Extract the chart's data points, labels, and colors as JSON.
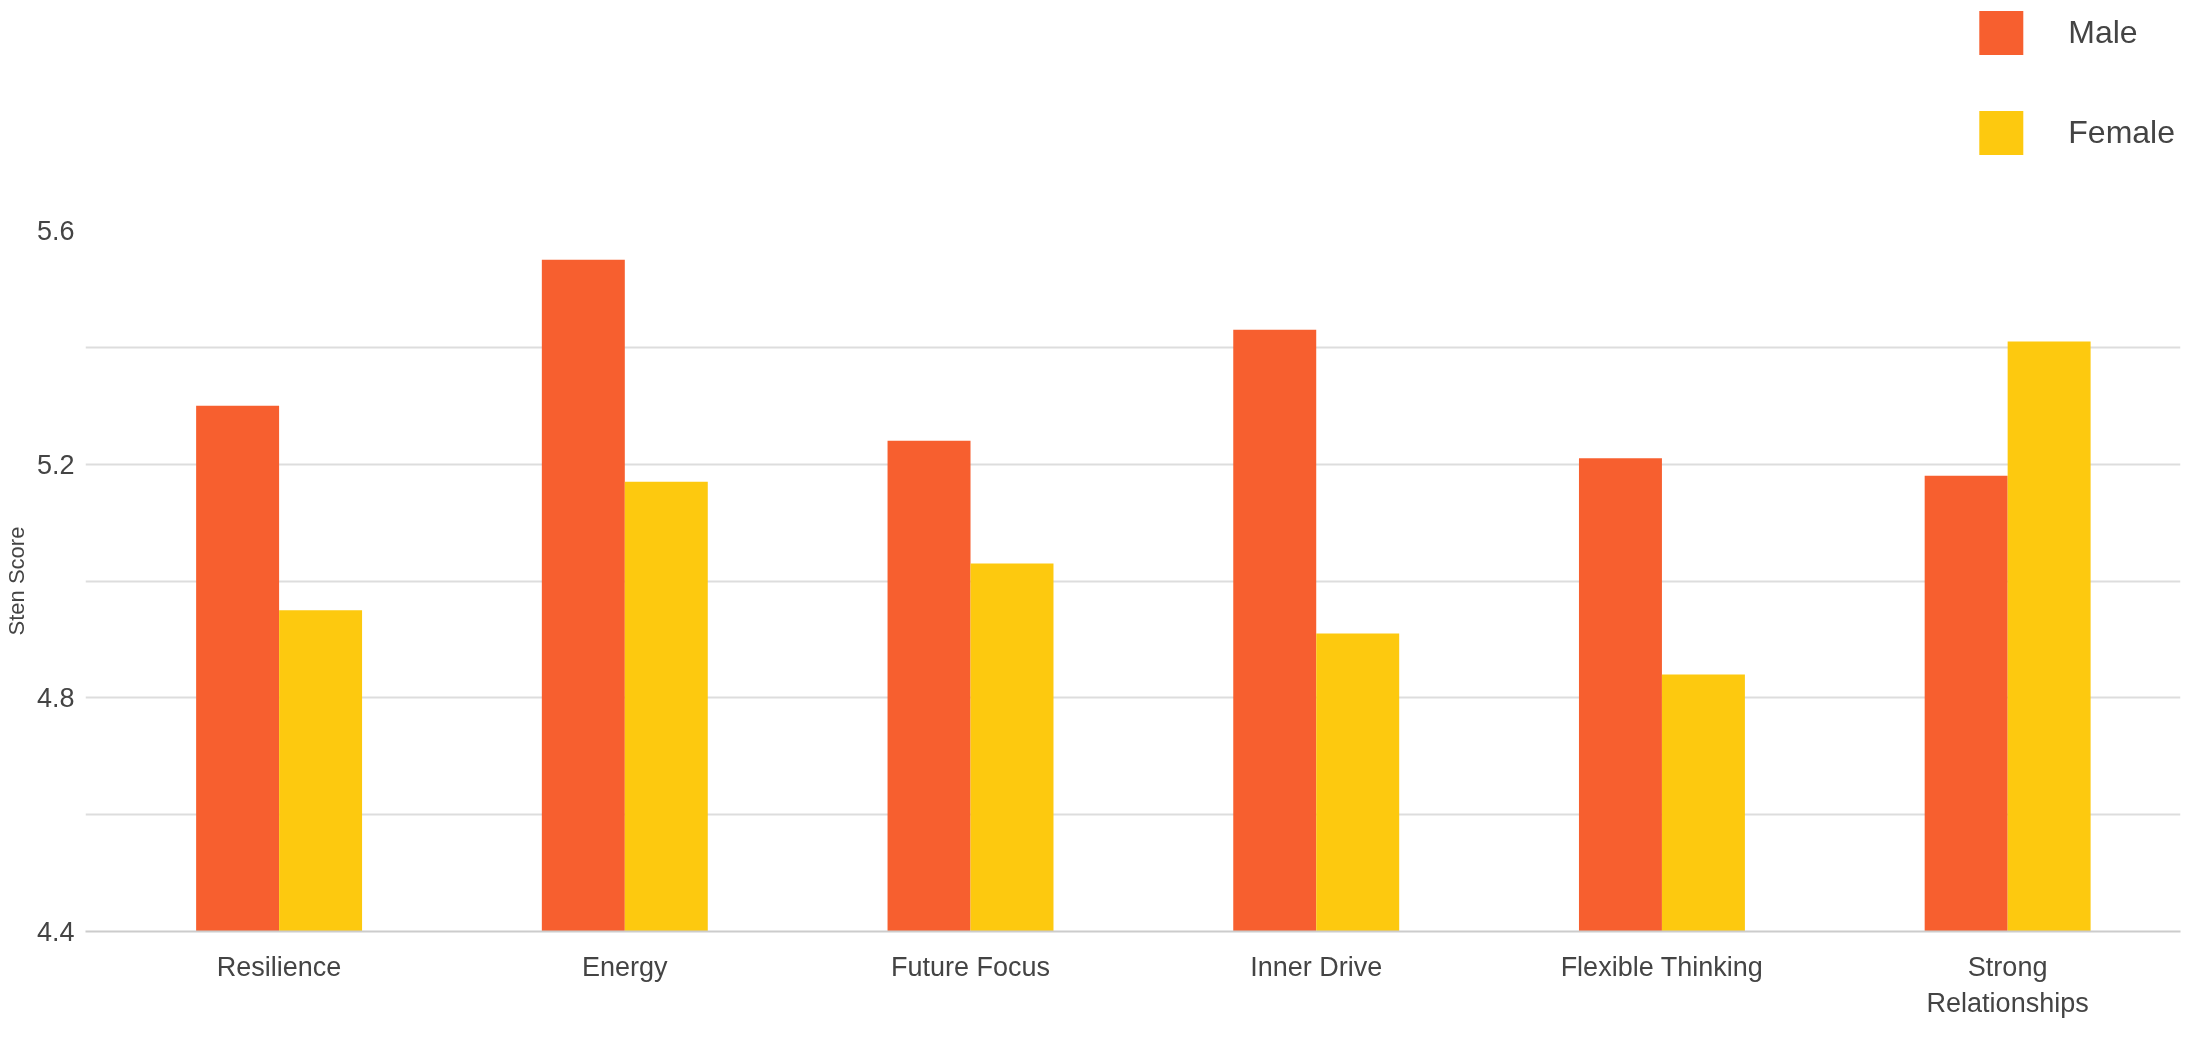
{
  "chart_data": {
    "type": "bar",
    "ylabel": "Sten Score",
    "categories": [
      "Resilience",
      "Energy",
      "Future Focus",
      "Inner Drive",
      "Flexible Thinking",
      "Strong Relationships"
    ],
    "series": [
      {
        "name": "Male",
        "color": "#f75f2f",
        "values": [
          5.3,
          5.55,
          5.24,
          5.43,
          5.21,
          5.18
        ]
      },
      {
        "name": "Female",
        "color": "#fdc90f",
        "values": [
          4.95,
          5.17,
          5.03,
          4.91,
          4.84,
          5.41
        ]
      }
    ],
    "ylim": [
      4.4,
      5.6
    ],
    "yticks": [
      4.4,
      {
        "value": 4.6,
        "label": null
      },
      4.8,
      {
        "value": 5.0,
        "label": null
      },
      5.2,
      {
        "value": 5.4,
        "label": null
      },
      5.6
    ],
    "grid": "y",
    "legend": "top right"
  }
}
